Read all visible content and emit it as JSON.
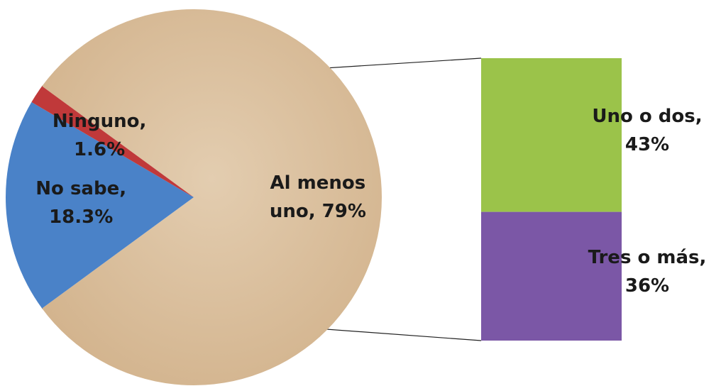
{
  "chart_data": {
    "type": "pie-of-bar",
    "pie": {
      "labels": [
        "Al menos uno, 79%",
        "No sabe, 18.3%",
        "Ninguno, 1.6%"
      ],
      "values": [
        79,
        18.3,
        1.6
      ],
      "colors": [
        "#dcc3a0",
        "#4a82c8",
        "#c0393a"
      ]
    },
    "bar": {
      "labels": [
        "Uno o dos, 43%",
        "Tres o más, 36%"
      ],
      "values": [
        43,
        36
      ],
      "colors": [
        "#9bc34a",
        "#7b57a6"
      ]
    }
  }
}
